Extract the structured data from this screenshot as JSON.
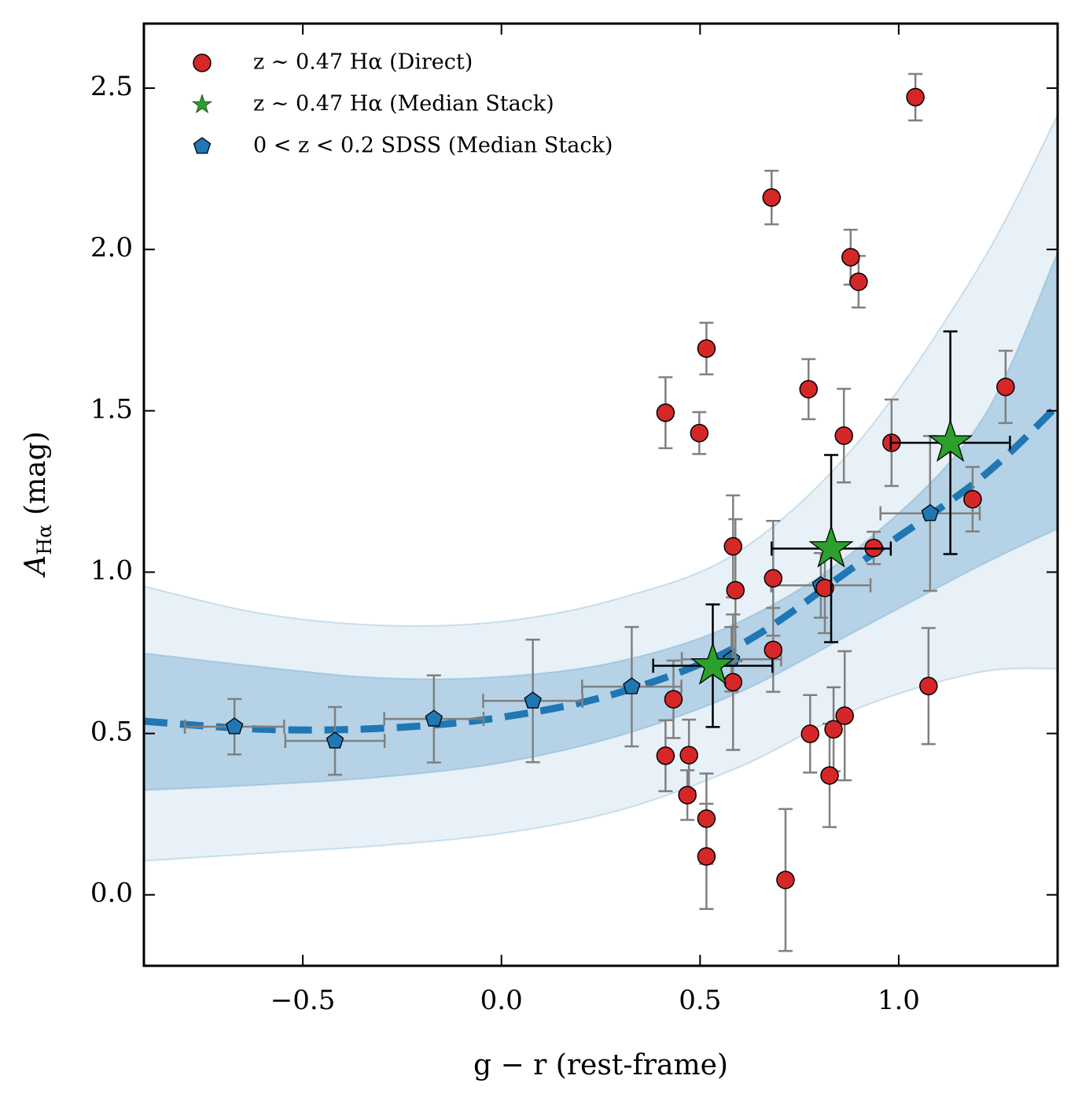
{
  "chart_data": {
    "type": "scatter",
    "xlabel": "g − r (rest-frame)",
    "ylabel": [
      "A",
      "Hα",
      "(mag)"
    ],
    "xlim": [
      -0.9,
      1.4
    ],
    "ylim": [
      -0.22,
      2.7
    ],
    "xticks": [
      {
        "value": -0.5,
        "label": "−0.5"
      },
      {
        "value": 0,
        "label": "0.0"
      },
      0.5,
      {
        "value": 1,
        "label": "1.0"
      }
    ],
    "yticks": [
      {
        "value": 0,
        "label": "0.0"
      },
      0.5,
      {
        "value": 1,
        "label": "1.0"
      },
      1.5,
      {
        "value": 2,
        "label": "2.0"
      },
      2.5
    ],
    "legend": "upper left",
    "bands": [
      {
        "color": "#1f77b4",
        "opacity": 0.1,
        "x": [
          -0.9,
          -0.6,
          -0.3,
          0,
          0.3,
          0.6,
          0.9,
          1.2,
          1.4
        ],
        "upper": [
          0.956,
          0.871,
          0.835,
          0.847,
          0.92,
          1.066,
          1.406,
          1.942,
          2.416
        ],
        "lower": [
          0.105,
          0.129,
          0.153,
          0.19,
          0.263,
          0.397,
          0.579,
          0.689,
          0.701
        ]
      },
      {
        "color": "#1f77b4",
        "opacity": 0.25,
        "x": [
          -0.9,
          -0.6,
          -0.3,
          0,
          0.3,
          0.6,
          0.9,
          1.2,
          1.4
        ],
        "upper": [
          0.749,
          0.706,
          0.672,
          0.676,
          0.725,
          0.847,
          1.078,
          1.455,
          1.99
        ],
        "lower": [
          0.324,
          0.341,
          0.365,
          0.409,
          0.494,
          0.628,
          0.822,
          1.017,
          1.134
        ]
      }
    ],
    "fit": {
      "color": "#1f77b4",
      "x": [
        -0.9,
        -0.6,
        -0.3,
        0,
        0.3,
        0.6,
        0.9,
        1.2,
        1.4
      ],
      "y": [
        0.538,
        0.513,
        0.516,
        0.55,
        0.628,
        0.774,
        1.027,
        1.285,
        1.516
      ]
    },
    "series": [
      {
        "name": "z ∼ 0.47 Hα (Direct)",
        "marker": "circle",
        "color": "#d62728",
        "errcolor": "#808080",
        "x": [
          0.413,
          0.498,
          0.516,
          0.68,
          1.042,
          0.879,
          0.899,
          0.773,
          0.862,
          0.982,
          1.269,
          1.186,
          0.583,
          0.589,
          0.684,
          0.937,
          0.814,
          0.684,
          0.583,
          0.433,
          0.413,
          0.472,
          0.468,
          0.516,
          0.516,
          0.715,
          0.777,
          0.836,
          0.864,
          0.826,
          1.075
        ],
        "y": [
          1.494,
          1.431,
          1.693,
          2.161,
          2.472,
          1.976,
          1.9,
          1.567,
          1.423,
          1.401,
          1.574,
          1.226,
          1.08,
          0.944,
          0.981,
          1.075,
          0.951,
          0.759,
          0.659,
          0.606,
          0.431,
          0.433,
          0.309,
          0.236,
          0.119,
          0.046,
          0.499,
          0.513,
          0.555,
          0.37,
          0.647
        ],
        "yerr": [
          0.11,
          0.065,
          0.08,
          0.083,
          0.072,
          0.085,
          0.08,
          0.093,
          0.145,
          0.134,
          0.112,
          0.1,
          0.158,
          0.22,
          0.178,
          0.05,
          0.14,
          0.13,
          0.21,
          0.12,
          0.11,
          0.11,
          0.077,
          0.14,
          0.163,
          0.22,
          0.12,
          0.13,
          0.2,
          0.16,
          0.18
        ]
      },
      {
        "name": "z ∼ 0.47 Hα (Median Stack)",
        "marker": "star",
        "color": "#2ca02c",
        "errcolor": "#000000",
        "x": [
          0.532,
          0.83,
          1.13
        ],
        "y": [
          0.71,
          1.073,
          1.401
        ],
        "xerr": [
          0.15,
          0.15,
          0.15
        ],
        "yerr": [
          0.19,
          0.29,
          0.345
        ]
      },
      {
        "name": "0 < z < 0.2 SDSS (Median Stack)",
        "marker": "pentagon",
        "color": "#1f77b4",
        "errcolor": "#808080",
        "x": [
          -0.672,
          -0.419,
          -0.17,
          0.079,
          0.328,
          0.579,
          0.804,
          1.079
        ],
        "y": [
          0.521,
          0.477,
          0.545,
          0.601,
          0.645,
          0.73,
          0.959,
          1.182
        ],
        "xerr": [
          0.125,
          0.125,
          0.125,
          0.125,
          0.125,
          0.125,
          0.125,
          0.125
        ],
        "yerr": [
          0.086,
          0.105,
          0.135,
          0.19,
          0.185,
          0.1,
          0.1,
          0.24
        ]
      }
    ]
  }
}
